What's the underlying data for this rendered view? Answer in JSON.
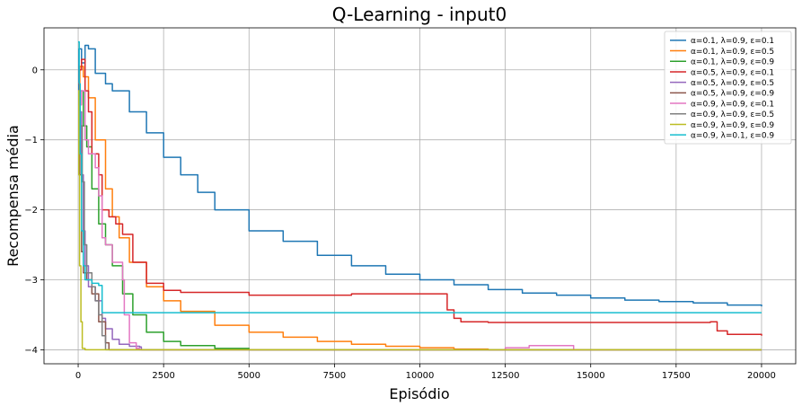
{
  "chart_data": {
    "type": "line",
    "title": "Q-Learning - input0",
    "xlabel": "Episódio",
    "ylabel": "Recompensa média",
    "xlim": [
      -1000,
      21000
    ],
    "ylim": [
      -4.2,
      0.6
    ],
    "xticks": [
      0,
      2500,
      5000,
      7500,
      10000,
      12500,
      15000,
      17500,
      20000
    ],
    "xtick_labels": [
      "0",
      "2500",
      "5000",
      "7500",
      "10000",
      "12500",
      "15000",
      "17500",
      "20000"
    ],
    "yticks": [
      0,
      -1,
      -2,
      -3,
      -4
    ],
    "ytick_labels": [
      "0",
      "−1",
      "−2",
      "−3",
      "−4"
    ],
    "grid": true,
    "legend_position": "top-right",
    "series": [
      {
        "name": "α=0.1, λ=0.9, ε=0.1",
        "color": "#1f77b4",
        "points": [
          [
            0,
            -0.5
          ],
          [
            20,
            0.3
          ],
          [
            100,
            0.1
          ],
          [
            200,
            0.35
          ],
          [
            300,
            0.3
          ],
          [
            500,
            -0.05
          ],
          [
            800,
            -0.2
          ],
          [
            1000,
            -0.3
          ],
          [
            1500,
            -0.6
          ],
          [
            2000,
            -0.9
          ],
          [
            2500,
            -1.25
          ],
          [
            3000,
            -1.5
          ],
          [
            3500,
            -1.75
          ],
          [
            4000,
            -2.0
          ],
          [
            5000,
            -2.3
          ],
          [
            6000,
            -2.45
          ],
          [
            7000,
            -2.65
          ],
          [
            8000,
            -2.8
          ],
          [
            9000,
            -2.92
          ],
          [
            10000,
            -3.0
          ],
          [
            11000,
            -3.07
          ],
          [
            12000,
            -3.14
          ],
          [
            13000,
            -3.19
          ],
          [
            14000,
            -3.22
          ],
          [
            15000,
            -3.26
          ],
          [
            16000,
            -3.29
          ],
          [
            17000,
            -3.31
          ],
          [
            18000,
            -3.33
          ],
          [
            19000,
            -3.36
          ],
          [
            20000,
            -3.38
          ]
        ]
      },
      {
        "name": "α=0.1, λ=0.9, ε=0.5",
        "color": "#ff7f0e",
        "points": [
          [
            0,
            -0.3
          ],
          [
            50,
            0.05
          ],
          [
            150,
            -0.1
          ],
          [
            300,
            -0.4
          ],
          [
            500,
            -1.0
          ],
          [
            800,
            -1.7
          ],
          [
            1000,
            -2.1
          ],
          [
            1200,
            -2.4
          ],
          [
            1500,
            -2.75
          ],
          [
            2000,
            -3.1
          ],
          [
            2500,
            -3.3
          ],
          [
            3000,
            -3.45
          ],
          [
            4000,
            -3.65
          ],
          [
            5000,
            -3.75
          ],
          [
            6000,
            -3.82
          ],
          [
            7000,
            -3.88
          ],
          [
            8000,
            -3.92
          ],
          [
            9000,
            -3.95
          ],
          [
            10000,
            -3.97
          ],
          [
            11000,
            -3.99
          ],
          [
            12000,
            -4.0
          ],
          [
            20000,
            -4.0
          ]
        ]
      },
      {
        "name": "α=0.1, λ=0.9, ε=0.9",
        "color": "#2ca02c",
        "points": [
          [
            0,
            -0.5
          ],
          [
            60,
            -0.3
          ],
          [
            150,
            -0.8
          ],
          [
            250,
            -1.1
          ],
          [
            400,
            -1.7
          ],
          [
            600,
            -2.2
          ],
          [
            800,
            -2.5
          ],
          [
            1000,
            -2.8
          ],
          [
            1300,
            -3.2
          ],
          [
            1600,
            -3.5
          ],
          [
            2000,
            -3.75
          ],
          [
            2500,
            -3.88
          ],
          [
            3000,
            -3.94
          ],
          [
            4000,
            -3.98
          ],
          [
            5000,
            -4.0
          ],
          [
            20000,
            -4.0
          ]
        ]
      },
      {
        "name": "α=0.5, λ=0.9, ε=0.1",
        "color": "#d62728",
        "points": [
          [
            0,
            -0.2
          ],
          [
            30,
            0.0
          ],
          [
            100,
            0.15
          ],
          [
            200,
            -0.3
          ],
          [
            300,
            -0.6
          ],
          [
            400,
            -1.2
          ],
          [
            600,
            -1.5
          ],
          [
            700,
            -2.0
          ],
          [
            900,
            -2.1
          ],
          [
            1100,
            -2.2
          ],
          [
            1300,
            -2.35
          ],
          [
            1600,
            -2.75
          ],
          [
            2000,
            -3.05
          ],
          [
            2500,
            -3.15
          ],
          [
            3000,
            -3.18
          ],
          [
            5000,
            -3.22
          ],
          [
            7500,
            -3.22
          ],
          [
            8000,
            -3.2
          ],
          [
            10500,
            -3.2
          ],
          [
            10800,
            -3.2
          ],
          [
            10800,
            -3.43
          ],
          [
            11000,
            -3.55
          ],
          [
            11200,
            -3.6
          ],
          [
            12000,
            -3.61
          ],
          [
            18500,
            -3.6
          ],
          [
            18700,
            -3.73
          ],
          [
            19000,
            -3.78
          ],
          [
            20000,
            -3.8
          ]
        ]
      },
      {
        "name": "α=0.5, λ=0.9, ε=0.5",
        "color": "#9467bd",
        "points": [
          [
            0,
            -0.4
          ],
          [
            50,
            -0.6
          ],
          [
            100,
            -1.5
          ],
          [
            150,
            -2.3
          ],
          [
            200,
            -2.8
          ],
          [
            300,
            -3.1
          ],
          [
            500,
            -3.3
          ],
          [
            700,
            -3.55
          ],
          [
            800,
            -3.7
          ],
          [
            1000,
            -3.85
          ],
          [
            1200,
            -3.92
          ],
          [
            1500,
            -3.95
          ],
          [
            1800,
            -3.96
          ],
          [
            1850,
            -4.0
          ],
          [
            20000,
            -4.0
          ]
        ]
      },
      {
        "name": "α=0.5, λ=0.9, ε=0.9",
        "color": "#8c564b",
        "points": [
          [
            0,
            -0.5
          ],
          [
            50,
            -1.5
          ],
          [
            100,
            -2.6
          ],
          [
            150,
            -2.9
          ],
          [
            250,
            -3.0
          ],
          [
            400,
            -3.2
          ],
          [
            600,
            -3.6
          ],
          [
            800,
            -3.9
          ],
          [
            900,
            -4.0
          ],
          [
            20000,
            -4.0
          ]
        ]
      },
      {
        "name": "α=0.9, λ=0.9, ε=0.1",
        "color": "#e377c2",
        "points": [
          [
            0,
            -0.5
          ],
          [
            100,
            -0.3
          ],
          [
            200,
            -1.0
          ],
          [
            300,
            -1.2
          ],
          [
            500,
            -1.4
          ],
          [
            600,
            -1.8
          ],
          [
            700,
            -2.4
          ],
          [
            800,
            -2.5
          ],
          [
            1000,
            -2.5
          ],
          [
            1000,
            -2.75
          ],
          [
            1200,
            -2.75
          ],
          [
            1300,
            -3.0
          ],
          [
            1350,
            -3.5
          ],
          [
            1500,
            -3.9
          ],
          [
            1700,
            -3.98
          ],
          [
            1800,
            -4.0
          ],
          [
            12500,
            -4.0
          ],
          [
            12500,
            -3.97
          ],
          [
            13000,
            -3.97
          ],
          [
            13200,
            -3.94
          ],
          [
            14000,
            -3.94
          ],
          [
            14500,
            -3.97
          ],
          [
            14500,
            -4.0
          ],
          [
            20000,
            -4.0
          ]
        ]
      },
      {
        "name": "α=0.9, λ=0.9, ε=0.5",
        "color": "#7f7f7f",
        "points": [
          [
            0,
            -0.5
          ],
          [
            60,
            -0.8
          ],
          [
            120,
            -1.6
          ],
          [
            180,
            -2.5
          ],
          [
            250,
            -2.9
          ],
          [
            400,
            -3.1
          ],
          [
            500,
            -3.3
          ],
          [
            600,
            -3.5
          ],
          [
            700,
            -3.8
          ],
          [
            800,
            -4.0
          ],
          [
            20000,
            -4.0
          ]
        ]
      },
      {
        "name": "α=0.9, λ=0.9, ε=0.9",
        "color": "#bcbd22",
        "points": [
          [
            0,
            -0.3
          ],
          [
            20,
            -1.5
          ],
          [
            40,
            -2.8
          ],
          [
            80,
            -3.6
          ],
          [
            120,
            -3.98
          ],
          [
            200,
            -4.0
          ],
          [
            20000,
            -4.0
          ]
        ]
      },
      {
        "name": "α=0.9, λ=0.1, ε=0.9",
        "color": "#17becf",
        "points": [
          [
            0,
            0.4
          ],
          [
            30,
            -0.2
          ],
          [
            60,
            -1.2
          ],
          [
            100,
            -2.3
          ],
          [
            150,
            -2.8
          ],
          [
            200,
            -3.0
          ],
          [
            400,
            -3.05
          ],
          [
            600,
            -3.08
          ],
          [
            700,
            -3.2
          ],
          [
            700,
            -3.47
          ],
          [
            20000,
            -3.47
          ]
        ]
      }
    ]
  }
}
